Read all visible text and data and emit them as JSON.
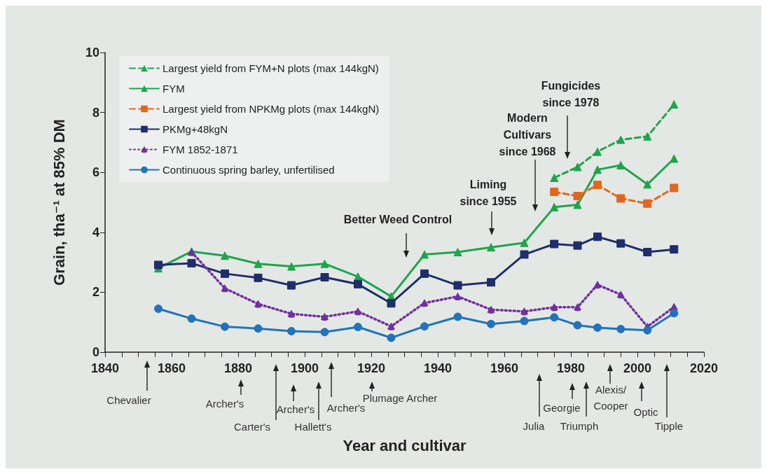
{
  "chart_data": {
    "type": "line",
    "xlabel": "Year and cultivar",
    "ylabel": "Grain, tha⁻¹ at 85% DM",
    "xlim": [
      1840,
      2020
    ],
    "xticks": [
      1840,
      {
        "value": 1845,
        "label": null
      },
      {
        "value": 1850,
        "label": null
      },
      {
        "value": 1855,
        "label": null
      },
      1860,
      {
        "value": 1865,
        "label": null
      },
      {
        "value": 1870,
        "label": null
      },
      {
        "value": 1875,
        "label": null
      },
      1880,
      {
        "value": 1885,
        "label": null
      },
      {
        "value": 1890,
        "label": null
      },
      {
        "value": 1895,
        "label": null
      },
      1900,
      {
        "value": 1905,
        "label": null
      },
      {
        "value": 1910,
        "label": null
      },
      {
        "value": 1915,
        "label": null
      },
      1920,
      {
        "value": 1925,
        "label": null
      },
      {
        "value": 1930,
        "label": null
      },
      {
        "value": 1935,
        "label": null
      },
      1940,
      {
        "value": 1945,
        "label": null
      },
      {
        "value": 1950,
        "label": null
      },
      {
        "value": 1955,
        "label": null
      },
      1960,
      {
        "value": 1965,
        "label": null
      },
      {
        "value": 1970,
        "label": null
      },
      {
        "value": 1975,
        "label": null
      },
      1980,
      {
        "value": 1985,
        "label": null
      },
      {
        "value": 1990,
        "label": null
      },
      {
        "value": 1995,
        "label": null
      },
      2000,
      {
        "value": 2005,
        "label": null
      },
      {
        "value": 2010,
        "label": null
      },
      {
        "value": 2015,
        "label": null
      },
      2020
    ],
    "ylim": [
      0,
      10
    ],
    "yticks": [
      0,
      2,
      4,
      6,
      8,
      10
    ],
    "grid": false,
    "legend": "top left",
    "x": [
      1856,
      1866,
      1876,
      1886,
      1896,
      1906,
      1916,
      1926,
      1936,
      1946,
      1956,
      1966,
      1975,
      1982,
      1988,
      1995,
      2003,
      2011
    ],
    "series": [
      {
        "name": "Largest yield from FYM+N plots (max 144kgN)",
        "color": "#1ea54c",
        "marker": "triangle",
        "line_style": "dashed",
        "x": [
          1975,
          1982,
          1988,
          1995,
          2003,
          2011
        ],
        "values": [
          5.82,
          6.18,
          6.69,
          7.09,
          7.2,
          8.27
        ]
      },
      {
        "name": "FYM",
        "color": "#1ea54c",
        "marker": "triangle",
        "line_style": "solid",
        "values": [
          2.8,
          3.36,
          3.22,
          2.95,
          2.86,
          2.95,
          2.52,
          1.86,
          3.26,
          3.34,
          3.5,
          3.65,
          4.84,
          4.92,
          6.09,
          6.24,
          5.6,
          6.46
        ]
      },
      {
        "name": "Largest yield from NPKMg plots (max 144kgN)",
        "color": "#e2661f",
        "marker": "square",
        "line_style": "dashed",
        "x": [
          1975,
          1982,
          1988,
          1995,
          2003,
          2011
        ],
        "values": [
          5.35,
          5.21,
          5.58,
          5.13,
          4.96,
          5.48
        ]
      },
      {
        "name": "PKMg+48kgN",
        "color": "#1f2d6b",
        "marker": "square",
        "line_style": "solid",
        "values": [
          2.91,
          2.97,
          2.62,
          2.48,
          2.23,
          2.5,
          2.27,
          1.63,
          2.62,
          2.23,
          2.33,
          3.26,
          3.61,
          3.56,
          3.85,
          3.63,
          3.34,
          3.43
        ]
      },
      {
        "name": "FYM 1852-1871",
        "color": "#7030a0",
        "marker": "star",
        "line_style": "dotted",
        "values": [
          null,
          3.34,
          2.13,
          1.61,
          1.28,
          1.18,
          1.36,
          0.86,
          1.64,
          1.86,
          1.42,
          1.36,
          1.5,
          1.5,
          2.25,
          1.92,
          0.85,
          1.51
        ]
      },
      {
        "name": "Continuous spring barley, unfertilised",
        "color": "#2173bb",
        "marker": "circle",
        "line_style": "solid",
        "values": [
          1.45,
          1.12,
          0.85,
          0.79,
          0.7,
          0.67,
          0.84,
          0.48,
          0.86,
          1.18,
          0.94,
          1.04,
          1.16,
          0.9,
          0.82,
          0.77,
          0.73,
          1.3
        ]
      }
    ],
    "annotations": [
      "Better Weed Control",
      "Liming\nsince 1955",
      "Modern\nCultivars\nsince 1968",
      "Fungicides\nsince 1978",
      "Chevalier",
      "Archer's",
      "Carter's",
      "Archer's",
      "Hallett's",
      "Archer's",
      "Plumage Archer",
      "Julia",
      "Georgie",
      "Triumph",
      "Alexis/\nCooper",
      "Optic",
      "Tipple"
    ]
  }
}
